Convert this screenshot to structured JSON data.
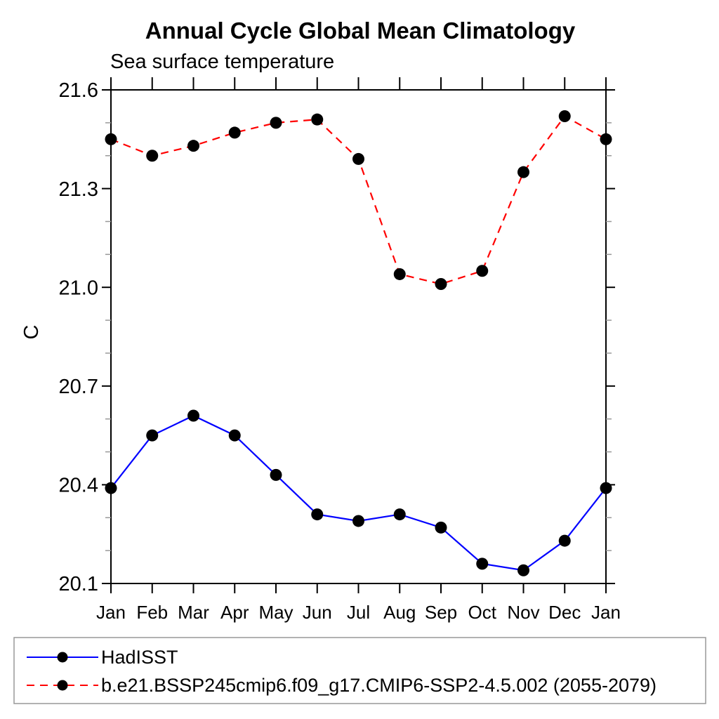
{
  "header": {
    "title": "Annual Cycle Global Mean Climatology",
    "subtitle": "Sea surface temperature"
  },
  "axes": {
    "y_title": "C",
    "x_tick_labels": [
      "Jan",
      "Feb",
      "Mar",
      "Apr",
      "May",
      "Jun",
      "Jul",
      "Aug",
      "Sep",
      "Oct",
      "Nov",
      "Dec",
      "Jan"
    ],
    "y_tick_labels": [
      "21.6",
      "21.3",
      "21.0",
      "20.7",
      "20.4",
      "20.1"
    ]
  },
  "colors": {
    "hadisst_line": "#0000ff",
    "model_line": "#ff0000",
    "marker": "#000000",
    "minor_tick": "#999999",
    "legend_border": "#999999"
  },
  "chart_data": {
    "type": "line",
    "title": "Annual Cycle Global Mean Climatology",
    "subtitle": "Sea surface temperature",
    "xlabel": "",
    "ylabel": "C",
    "categories": [
      "Jan",
      "Feb",
      "Mar",
      "Apr",
      "May",
      "Jun",
      "Jul",
      "Aug",
      "Sep",
      "Oct",
      "Nov",
      "Dec",
      "Jan"
    ],
    "ylim": [
      20.1,
      21.6
    ],
    "ytick_major": [
      21.6,
      21.3,
      21.0,
      20.7,
      20.4,
      20.1
    ],
    "ytick_labels": [
      "21.6",
      "21.3",
      "21.0",
      "20.7",
      "20.4",
      "20.1"
    ],
    "ytick_minor_interval": 0.1,
    "grid": false,
    "legend_position": "bottom",
    "series": [
      {
        "name": "HadISST",
        "color": "#0000ff",
        "line_style": "solid",
        "marker": "circle",
        "marker_color": "#000000",
        "values": [
          20.39,
          20.55,
          20.61,
          20.55,
          20.43,
          20.31,
          20.29,
          20.31,
          20.27,
          20.16,
          20.14,
          20.23,
          20.39
        ]
      },
      {
        "name": "b.e21.BSSP245cmip6.f09_g17.CMIP6-SSP2-4.5.002 (2055-2079)",
        "color": "#ff0000",
        "line_style": "dashed",
        "marker": "circle",
        "marker_color": "#000000",
        "values": [
          21.45,
          21.4,
          21.43,
          21.47,
          21.5,
          21.51,
          21.39,
          21.04,
          21.01,
          21.05,
          21.35,
          21.52,
          21.45
        ]
      }
    ]
  }
}
